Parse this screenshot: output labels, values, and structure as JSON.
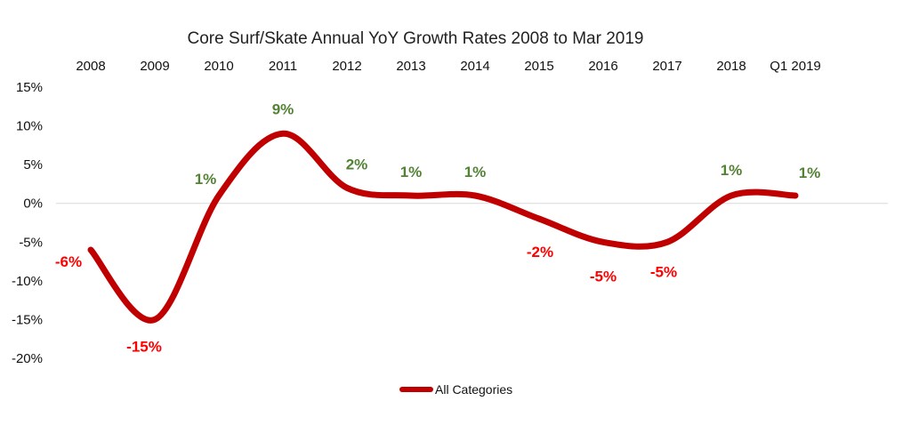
{
  "chart_data": {
    "type": "line",
    "title": "Core Surf/Skate Annual YoY Growth Rates 2008 to Mar 2019",
    "categories": [
      "2008",
      "2009",
      "2010",
      "2011",
      "2012",
      "2013",
      "2014",
      "2015",
      "2016",
      "2017",
      "2018",
      "Q1 2019"
    ],
    "series": [
      {
        "name": "All Categories",
        "values": [
          -6,
          -15,
          1,
          9,
          2,
          1,
          1,
          -2,
          -5,
          -5,
          1,
          1
        ],
        "data_labels": [
          "-6%",
          "-15%",
          "1%",
          "9%",
          "2%",
          "1%",
          "1%",
          "-2%",
          "-5%",
          "-5%",
          "1%",
          "1%"
        ],
        "color": "#C00000"
      }
    ],
    "y_ticks": [
      "15%",
      "10%",
      "5%",
      "0%",
      "-5%",
      "-10%",
      "-15%",
      "-20%"
    ],
    "ylim": [
      -20,
      15
    ],
    "xaxis_position": "top",
    "grid": false,
    "legend_position": "bottom-center",
    "label_colors": {
      "positive": "#548235",
      "negative": "#FF0000"
    },
    "axis_line_color": "#D9D9D9"
  }
}
